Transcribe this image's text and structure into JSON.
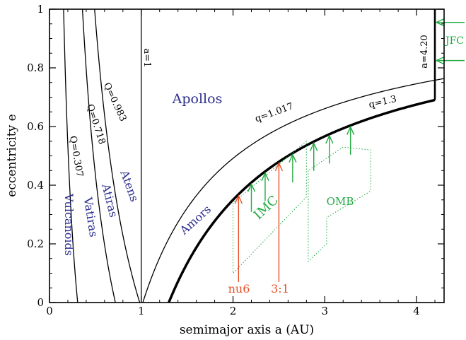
{
  "chart_data": {
    "type": "line",
    "xlabel": "semimajor axis a (AU)",
    "ylabel": "eccentricity e",
    "xlim": [
      0,
      4.3
    ],
    "ylim": [
      0,
      1
    ],
    "xticks": [
      "0",
      "1",
      "2",
      "3",
      "4"
    ],
    "yticks": [
      "0",
      "0.2",
      "0.4",
      "0.6",
      "0.8",
      "1"
    ],
    "grid": false,
    "curves": [
      {
        "label": "Q=0.307",
        "kind": "aphelion",
        "value": 0.307
      },
      {
        "label": "Q=0.718",
        "kind": "aphelion",
        "value": 0.718
      },
      {
        "label": "Q=0.983",
        "kind": "aphelion",
        "value": 0.983
      },
      {
        "label": "a=1",
        "kind": "semimajor",
        "value": 1
      },
      {
        "label": "q=1.017",
        "kind": "perihelion",
        "value": 1.017
      },
      {
        "label": "q=1.3",
        "kind": "perihelion",
        "value": 1.3
      },
      {
        "label": "a=4.20",
        "kind": "semimajor",
        "value": 4.2
      }
    ],
    "regions": [
      "Vulcanoids",
      "Vatiras",
      "Atiras",
      "Atens",
      "Apollos",
      "Amors"
    ],
    "source_regions": [
      "IMC",
      "OMB",
      "JFC"
    ],
    "resonances": [
      {
        "label": "nu6",
        "a": 2.06
      },
      {
        "label": "3:1",
        "a": 2.5
      }
    ],
    "green_arrows_a": [
      2.2,
      2.35,
      2.65,
      2.88,
      3.05,
      3.28
    ],
    "colors": {
      "regions": "#2a2d8c",
      "source": "#22aa44",
      "resonance": "#e8502a",
      "curves": "#000000"
    }
  }
}
